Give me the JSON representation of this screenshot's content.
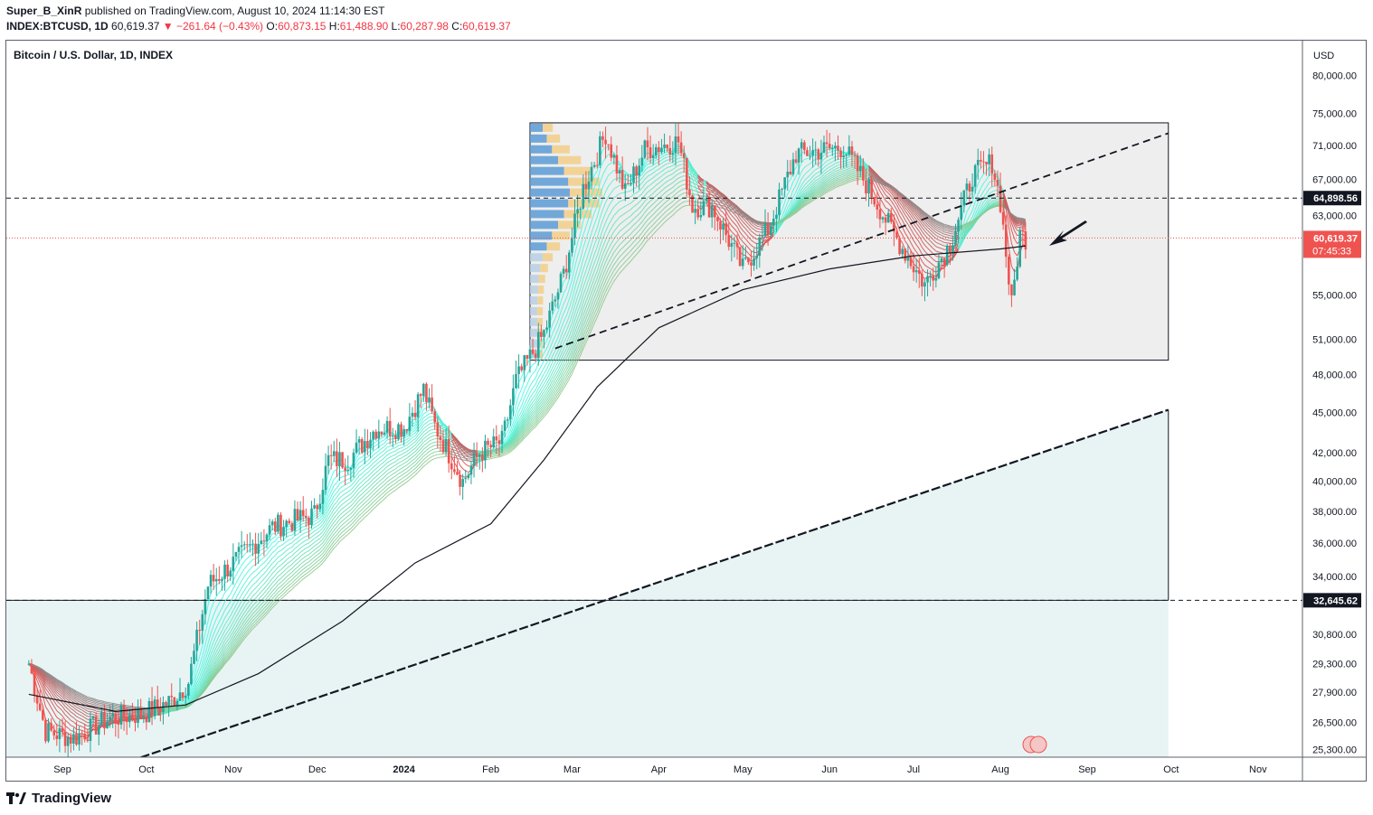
{
  "header": {
    "publisher_line_user": "Super_B_XinR",
    "publisher_line_rest": " published on TradingView.com, August 10, 2024 11:14:30 EST",
    "symbol": "INDEX:BTCUSD, 1D",
    "last": "60,619.37",
    "change": "▼ −261.64 (−0.43%)",
    "o_label": "O:",
    "o": "60,873.15",
    "h_label": "H:",
    "h": "61,488.90",
    "l_label": "L:",
    "l": "60,287.98",
    "c_label": "C:",
    "c": "60,619.37"
  },
  "pane_title": "Bitcoin / U.S. Dollar, 1D, INDEX",
  "footer": {
    "brand": "TradingView"
  },
  "colors": {
    "up": "#26a69a",
    "down": "#ef5350",
    "range_fill": "#eeeeee",
    "channel_fill": "#e8f4f4",
    "price_tag": "#ef5350",
    "line_tag": "#131722"
  },
  "chart_data": {
    "type": "candlestick",
    "y_scale": "log",
    "currency_label": "USD",
    "y_ticks": [
      80000,
      75000,
      71000,
      67000,
      63000,
      55000,
      51000,
      48000,
      45000,
      42000,
      40000,
      38000,
      36000,
      34000,
      30800,
      29300,
      27900,
      26500,
      25300
    ],
    "y_tick_labels": [
      "80,000.00",
      "75,000.00",
      "71,000.00",
      "67,000.00",
      "63,000.00",
      "55,000.00",
      "51,000.00",
      "48,000.00",
      "45,000.00",
      "42,000.00",
      "40,000.00",
      "38,000.00",
      "36,000.00",
      "34,000.00",
      "30,800.00",
      "29,300.00",
      "27,900.00",
      "26,500.00",
      "25,300.00"
    ],
    "x_labels": [
      "Sep",
      "Oct",
      "Nov",
      "Dec",
      "2024",
      "Feb",
      "Mar",
      "Apr",
      "May",
      "Jun",
      "Jul",
      "Aug",
      "Sep",
      "Oct",
      "Nov"
    ],
    "x_label_dates": [
      "2023-09-01",
      "2023-10-01",
      "2023-11-01",
      "2023-12-01",
      "2024-01-01",
      "2024-02-01",
      "2024-03-01",
      "2024-04-01",
      "2024-05-01",
      "2024-06-01",
      "2024-07-01",
      "2024-08-01",
      "2024-09-01",
      "2024-10-01",
      "2024-11-01"
    ],
    "last_price": 60619.37,
    "last_price_label": "60,619.37",
    "countdown": "07:45:33",
    "horizontal_lines": [
      {
        "value": 64898.56,
        "label": "64,898.56",
        "style": "dashed"
      },
      {
        "value": 32645.62,
        "label": "32,645.62",
        "style": "dashed"
      }
    ],
    "range_box": {
      "start": "2024-02-15",
      "end": "2024-09-30",
      "top": 73800,
      "bottom": 49200
    },
    "channel_box": {
      "start": "2023-08-20",
      "end": "2024-09-30",
      "top": 32645.62
    },
    "trendlines": [
      {
        "start_date": "2023-09-25",
        "start_value": 24800,
        "end_date": "2024-09-30",
        "end_value": 45200,
        "style": "dashed-bold"
      },
      {
        "start_date": "2024-02-24",
        "start_value": 50200,
        "end_date": "2024-09-30",
        "end_value": 72500,
        "style": "dashed"
      }
    ],
    "anchor_prices": [
      [
        "2023-08-20",
        29300
      ],
      [
        "2023-08-26",
        26100
      ],
      [
        "2023-09-05",
        25800
      ],
      [
        "2023-09-18",
        26700
      ],
      [
        "2023-09-30",
        26900
      ],
      [
        "2023-10-10",
        27500
      ],
      [
        "2023-10-16",
        28400
      ],
      [
        "2023-10-23",
        33500
      ],
      [
        "2023-11-01",
        34800
      ],
      [
        "2023-11-15",
        37000
      ],
      [
        "2023-11-30",
        37800
      ],
      [
        "2023-12-05",
        41500
      ],
      [
        "2023-12-12",
        41500
      ],
      [
        "2023-12-22",
        43800
      ],
      [
        "2024-01-01",
        43900
      ],
      [
        "2024-01-08",
        46800
      ],
      [
        "2024-01-12",
        44000
      ],
      [
        "2024-01-22",
        40000
      ],
      [
        "2024-01-28",
        42000
      ],
      [
        "2024-02-05",
        42800
      ],
      [
        "2024-02-10",
        47500
      ],
      [
        "2024-02-20",
        51500
      ],
      [
        "2024-02-27",
        57000
      ],
      [
        "2024-03-05",
        66000
      ],
      [
        "2024-03-13",
        72500
      ],
      [
        "2024-03-20",
        65500
      ],
      [
        "2024-03-27",
        70500
      ],
      [
        "2024-04-08",
        71500
      ],
      [
        "2024-04-13",
        64000
      ],
      [
        "2024-04-20",
        64000
      ],
      [
        "2024-05-01",
        57500
      ],
      [
        "2024-05-10",
        61500
      ],
      [
        "2024-05-20",
        70000
      ],
      [
        "2024-06-06",
        70800
      ],
      [
        "2024-06-15",
        66000
      ],
      [
        "2024-06-24",
        61000
      ],
      [
        "2024-07-05",
        56000
      ],
      [
        "2024-07-14",
        60000
      ],
      [
        "2024-07-22",
        67500
      ],
      [
        "2024-07-29",
        69000
      ],
      [
        "2024-08-01",
        64500
      ],
      [
        "2024-08-05",
        54000
      ],
      [
        "2024-08-08",
        61000
      ],
      [
        "2024-08-10",
        60619
      ]
    ],
    "ma_line": [
      [
        "2023-08-20",
        27800
      ],
      [
        "2023-09-20",
        27000
      ],
      [
        "2023-10-15",
        27300
      ],
      [
        "2023-11-10",
        28800
      ],
      [
        "2023-12-10",
        31500
      ],
      [
        "2024-01-05",
        34800
      ],
      [
        "2024-02-01",
        37200
      ],
      [
        "2024-02-20",
        41500
      ],
      [
        "2024-03-10",
        47000
      ],
      [
        "2024-04-01",
        52000
      ],
      [
        "2024-05-01",
        55500
      ],
      [
        "2024-06-01",
        57500
      ],
      [
        "2024-07-01",
        58800
      ],
      [
        "2024-08-01",
        59500
      ],
      [
        "2024-08-10",
        59800
      ]
    ]
  }
}
